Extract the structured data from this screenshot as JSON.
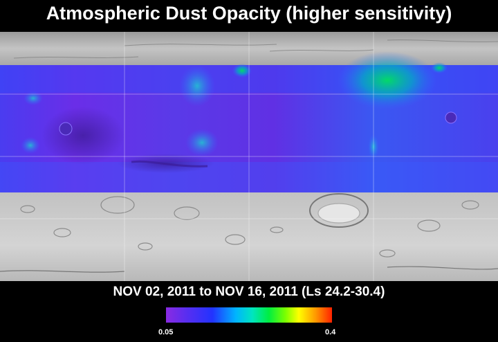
{
  "title": "Atmospheric Dust Opacity (higher sensitivity)",
  "date_range": "NOV 02, 2011 to NOV 16, 2011 (Ls 24.2-30.4)",
  "colorbar": {
    "min_label": "0.05",
    "max_label": "0.4",
    "colors": [
      "#8a2be2",
      "#2233ff",
      "#00b4ff",
      "#00ee40",
      "#ffff00",
      "#ff9a00",
      "#ff2200"
    ]
  },
  "colors": {
    "background": "#000000",
    "opacity_low": "#6a2ee8",
    "opacity_mid": "#2f6bff",
    "opacity_high": "#1fd28a"
  }
}
